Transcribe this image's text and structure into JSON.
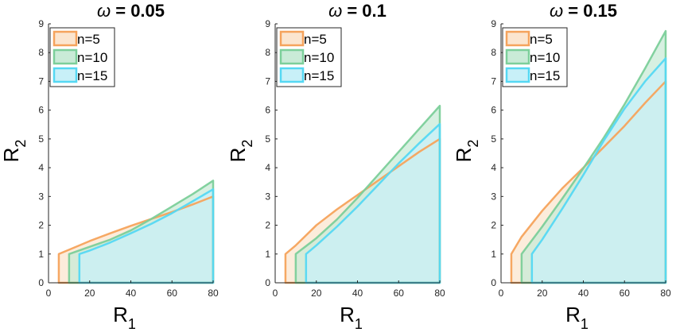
{
  "chart_data": [
    {
      "type": "area",
      "title_symbol": "ω",
      "title_value": " = 0.05",
      "xlabel": "R",
      "xlabel_sub": "1",
      "ylabel": "R",
      "ylabel_sub": "2",
      "xlim": [
        0,
        80
      ],
      "ylim": [
        0,
        9
      ],
      "xticks": [
        "0",
        "20",
        "40",
        "60",
        "80"
      ],
      "yticks": [
        "0",
        "1",
        "2",
        "3",
        "4",
        "5",
        "6",
        "7",
        "8",
        "9"
      ],
      "legend_position": "top-left",
      "series": [
        {
          "name": "n=5",
          "color": "#f5a35c",
          "fill": "#fbe5cf",
          "boundary": [
            [
              5,
              0
            ],
            [
              5,
              1
            ],
            [
              10,
              1.15
            ],
            [
              20,
              1.45
            ],
            [
              30,
              1.72
            ],
            [
              40,
              1.98
            ],
            [
              50,
              2.22
            ],
            [
              60,
              2.46
            ],
            [
              70,
              2.72
            ],
            [
              80,
              3.0
            ],
            [
              80,
              0
            ]
          ]
        },
        {
          "name": "n=10",
          "color": "#7ccf9a",
          "fill": "#c9ebd7",
          "boundary": [
            [
              10,
              0
            ],
            [
              10,
              1
            ],
            [
              20,
              1.25
            ],
            [
              30,
              1.5
            ],
            [
              40,
              1.82
            ],
            [
              50,
              2.22
            ],
            [
              60,
              2.65
            ],
            [
              70,
              3.08
            ],
            [
              80,
              3.55
            ],
            [
              80,
              0
            ]
          ]
        },
        {
          "name": "n=15",
          "color": "#55d8f3",
          "fill": "#c8f0f8",
          "boundary": [
            [
              15,
              0
            ],
            [
              15,
              1
            ],
            [
              20,
              1.12
            ],
            [
              30,
              1.4
            ],
            [
              40,
              1.72
            ],
            [
              50,
              2.05
            ],
            [
              60,
              2.42
            ],
            [
              70,
              2.83
            ],
            [
              80,
              3.25
            ],
            [
              80,
              0
            ]
          ]
        }
      ]
    },
    {
      "type": "area",
      "title_symbol": "ω",
      "title_value": " = 0.1",
      "xlabel": "R",
      "xlabel_sub": "1",
      "ylabel": "R",
      "ylabel_sub": "2",
      "xlim": [
        0,
        80
      ],
      "ylim": [
        0,
        9
      ],
      "xticks": [
        "0",
        "20",
        "40",
        "60",
        "80"
      ],
      "yticks": [
        "0",
        "1",
        "2",
        "3",
        "4",
        "5",
        "6",
        "7",
        "8",
        "9"
      ],
      "legend_position": "top-left",
      "series": [
        {
          "name": "n=5",
          "color": "#f5a35c",
          "fill": "#fbe5cf",
          "boundary": [
            [
              5,
              0
            ],
            [
              5,
              1
            ],
            [
              10,
              1.3
            ],
            [
              20,
              2.0
            ],
            [
              30,
              2.55
            ],
            [
              40,
              3.05
            ],
            [
              50,
              3.55
            ],
            [
              60,
              4.05
            ],
            [
              70,
              4.55
            ],
            [
              80,
              5.0
            ],
            [
              80,
              0
            ]
          ]
        },
        {
          "name": "n=10",
          "color": "#7ccf9a",
          "fill": "#c9ebd7",
          "boundary": [
            [
              10,
              0
            ],
            [
              10,
              1
            ],
            [
              20,
              1.55
            ],
            [
              30,
              2.2
            ],
            [
              40,
              2.95
            ],
            [
              50,
              3.75
            ],
            [
              60,
              4.55
            ],
            [
              70,
              5.35
            ],
            [
              80,
              6.15
            ],
            [
              80,
              0
            ]
          ]
        },
        {
          "name": "n=15",
          "color": "#55d8f3",
          "fill": "#c8f0f8",
          "boundary": [
            [
              15,
              0
            ],
            [
              15,
              1
            ],
            [
              20,
              1.3
            ],
            [
              30,
              1.95
            ],
            [
              40,
              2.65
            ],
            [
              50,
              3.4
            ],
            [
              60,
              4.15
            ],
            [
              70,
              4.85
            ],
            [
              80,
              5.52
            ],
            [
              80,
              0
            ]
          ]
        }
      ]
    },
    {
      "type": "area",
      "title_symbol": "ω",
      "title_value": " = 0.15",
      "xlabel": "R",
      "xlabel_sub": "1",
      "ylabel": "R",
      "ylabel_sub": "2",
      "xlim": [
        0,
        80
      ],
      "ylim": [
        0,
        9
      ],
      "xticks": [
        "0",
        "20",
        "40",
        "60",
        "80"
      ],
      "yticks": [
        "0",
        "1",
        "2",
        "3",
        "4",
        "5",
        "6",
        "7",
        "8",
        "9"
      ],
      "legend_position": "top-left",
      "series": [
        {
          "name": "n=5",
          "color": "#f5a35c",
          "fill": "#fbe5cf",
          "boundary": [
            [
              5,
              0
            ],
            [
              5,
              1
            ],
            [
              10,
              1.6
            ],
            [
              20,
              2.5
            ],
            [
              30,
              3.3
            ],
            [
              40,
              4.0
            ],
            [
              50,
              4.72
            ],
            [
              60,
              5.45
            ],
            [
              70,
              6.25
            ],
            [
              80,
              7.0
            ],
            [
              80,
              0
            ]
          ]
        },
        {
          "name": "n=10",
          "color": "#7ccf9a",
          "fill": "#c9ebd7",
          "boundary": [
            [
              10,
              0
            ],
            [
              10,
              1
            ],
            [
              20,
              1.95
            ],
            [
              30,
              2.95
            ],
            [
              40,
              3.98
            ],
            [
              50,
              5.05
            ],
            [
              60,
              6.2
            ],
            [
              70,
              7.45
            ],
            [
              80,
              8.75
            ],
            [
              80,
              0
            ]
          ]
        },
        {
          "name": "n=15",
          "color": "#55d8f3",
          "fill": "#c8f0f8",
          "boundary": [
            [
              15,
              0
            ],
            [
              15,
              1
            ],
            [
              20,
              1.5
            ],
            [
              30,
              2.6
            ],
            [
              40,
              3.75
            ],
            [
              50,
              4.95
            ],
            [
              60,
              6.05
            ],
            [
              70,
              7.0
            ],
            [
              80,
              7.8
            ],
            [
              80,
              0
            ]
          ]
        }
      ]
    }
  ]
}
